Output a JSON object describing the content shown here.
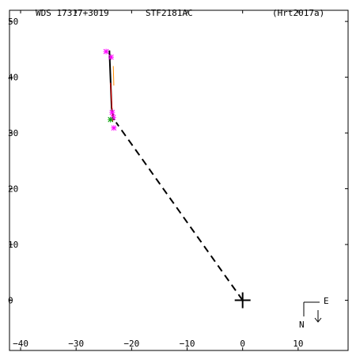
{
  "header": {
    "wds_id": "WDS 17317+3019",
    "discoverer": "STF2181AC",
    "reference": "(Hrt2017a)"
  },
  "orientation": {
    "east_label": "E",
    "north_label": "N"
  },
  "colors": {
    "axes": "#000000",
    "orbit": "#000000",
    "fit_line": "#ff0000",
    "measure_magenta": "#ff00ff",
    "measure_green": "#00a000",
    "residual": "#ff8c00",
    "dashed_link": "#000000"
  },
  "chart_data": {
    "type": "scatter",
    "title": "STF2181AC",
    "xlabel": "",
    "ylabel": "",
    "xlim": [
      -42,
      19
    ],
    "ylim": [
      -9,
      52
    ],
    "x_ticks": [
      -40,
      -30,
      -20,
      -10,
      0,
      10
    ],
    "y_ticks": [
      0,
      10,
      20,
      30,
      40,
      50
    ],
    "x_tick_labels": [
      "−40",
      "−30",
      "−20",
      "−10",
      "0",
      "10"
    ],
    "y_tick_labels": [
      "0",
      "10",
      "20",
      "30",
      "40",
      "50"
    ],
    "primary": {
      "x": 0,
      "y": 0
    },
    "dashed_link": {
      "from": [
        0,
        0
      ],
      "to": [
        -22.8,
        31.9
      ]
    },
    "orbit_segment": [
      [
        -24.0,
        44.8
      ],
      [
        -23.6,
        34.5
      ],
      [
        -23.2,
        32.3
      ]
    ],
    "fit_line": [
      [
        -23.8,
        39.0
      ],
      [
        -23.4,
        32.0
      ]
    ],
    "residual_line": [
      [
        -23.3,
        42.0
      ],
      [
        -23.2,
        38.5
      ]
    ],
    "measurements": [
      {
        "x": -24.6,
        "y": 44.6,
        "color": "magenta"
      },
      {
        "x": -23.7,
        "y": 43.6,
        "color": "magenta"
      },
      {
        "x": -23.5,
        "y": 33.7,
        "color": "magenta"
      },
      {
        "x": -23.3,
        "y": 32.8,
        "color": "magenta"
      },
      {
        "x": -23.2,
        "y": 30.9,
        "color": "magenta"
      },
      {
        "x": -23.8,
        "y": 32.4,
        "color": "green"
      }
    ]
  }
}
